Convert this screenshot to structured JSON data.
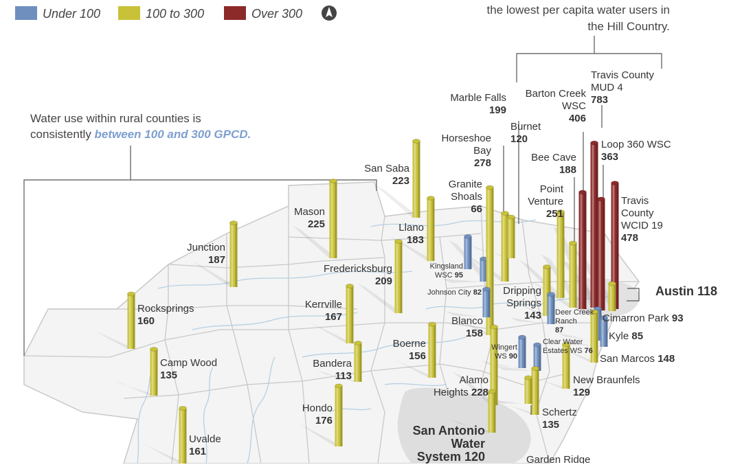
{
  "colors": {
    "under_100": "#6f8fbf",
    "mid_100_300": "#c9c239",
    "over_300": "#8c2a2a",
    "highlight_text": "#7e9fcf",
    "counties": "#c8c8c8",
    "rivers": "#b6cfe2",
    "urban": "#d9d9d9",
    "bracket": "#555555"
  },
  "legend": {
    "items": [
      {
        "label": "Under 100",
        "color": "#6f8fbf"
      },
      {
        "label": "100 to 300",
        "color": "#c9c239"
      },
      {
        "label": "Over 300",
        "color": "#8c2a2a"
      }
    ],
    "north_icon": "north-arrow-icon"
  },
  "annotations": {
    "rural_line1": "Water use within rural counties is",
    "rural_line2_prefix": "consistently ",
    "rural_line2_highlight": "between 100 and 300 GPCD.",
    "hill_line1": "the lowest per capita water users in",
    "hill_line2": "the Hill Country."
  },
  "chart_data": {
    "type": "bar",
    "title": "",
    "unit": "GPCD",
    "categories": [
      "Under 100",
      "100 to 300",
      "Over 300"
    ],
    "series": [
      {
        "name": "Junction",
        "value": 187,
        "category": "100 to 300"
      },
      {
        "name": "Rocksprings",
        "value": 160,
        "category": "100 to 300"
      },
      {
        "name": "Camp Wood",
        "value": 135,
        "category": "100 to 300"
      },
      {
        "name": "Uvalde",
        "value": 161,
        "category": "100 to 300"
      },
      {
        "name": "Hondo",
        "value": 176,
        "category": "100 to 300"
      },
      {
        "name": "Bandera",
        "value": 113,
        "category": "100 to 300"
      },
      {
        "name": "Kerrville",
        "value": 167,
        "category": "100 to 300"
      },
      {
        "name": "Fredericksburg",
        "value": 209,
        "category": "100 to 300"
      },
      {
        "name": "Mason",
        "value": 225,
        "category": "100 to 300"
      },
      {
        "name": "San Saba",
        "value": 223,
        "category": "100 to 300"
      },
      {
        "name": "Llano",
        "value": 183,
        "category": "100 to 300"
      },
      {
        "name": "Boerne",
        "value": 156,
        "category": "100 to 300"
      },
      {
        "name": "Blanco",
        "value": 158,
        "category": "100 to 300"
      },
      {
        "name": "Johnson City",
        "value": 82,
        "category": "Under 100"
      },
      {
        "name": "Kingsland WSC",
        "value": 95,
        "category": "Under 100"
      },
      {
        "name": "Granite Shoals",
        "value": 66,
        "category": "Under 100"
      },
      {
        "name": "Horseshoe Bay",
        "value": 278,
        "category": "100 to 300"
      },
      {
        "name": "Marble Falls",
        "value": 199,
        "category": "100 to 300"
      },
      {
        "name": "Burnet",
        "value": 120,
        "category": "100 to 300"
      },
      {
        "name": "Dripping Springs",
        "value": 143,
        "category": "100 to 300"
      },
      {
        "name": "Point Venture",
        "value": 251,
        "category": "100 to 300"
      },
      {
        "name": "Bee Cave",
        "value": 188,
        "category": "100 to 300"
      },
      {
        "name": "Barton Creek WSC",
        "value": 406,
        "category": "Over 300"
      },
      {
        "name": "Travis County MUD 4",
        "value": 783,
        "category": "Over 300"
      },
      {
        "name": "Loop 360 WSC",
        "value": 363,
        "category": "Over 300"
      },
      {
        "name": "Travis County WCID 19",
        "value": 478,
        "category": "Over 300"
      },
      {
        "name": "Austin",
        "value": 118,
        "category": "100 to 300"
      },
      {
        "name": "Deer Creek Ranch",
        "value": 87,
        "category": "Under 100"
      },
      {
        "name": "Cimarron Park",
        "value": 93,
        "category": "Under 100"
      },
      {
        "name": "Kyle",
        "value": 85,
        "category": "Under 100"
      },
      {
        "name": "San Marcos",
        "value": 148,
        "category": "100 to 300"
      },
      {
        "name": "Clear Water Estates WS",
        "value": 76,
        "category": "Under 100"
      },
      {
        "name": "Wingert WS",
        "value": 90,
        "category": "Under 100"
      },
      {
        "name": "New Braunfels",
        "value": 129,
        "category": "100 to 300"
      },
      {
        "name": "Alamo Heights",
        "value": 228,
        "category": "100 to 300"
      },
      {
        "name": "Schertz",
        "value": 135,
        "category": "100 to 300"
      },
      {
        "name": "San Antonio Water System",
        "value": 120,
        "category": "100 to 300"
      },
      {
        "name": "Garden Ridge",
        "value": null,
        "category": "100 to 300"
      }
    ]
  },
  "labels": [
    {
      "name_lines": [
        "Junction"
      ],
      "value": "187"
    },
    {
      "name_lines": [
        "Rocksprings"
      ],
      "value": "160"
    },
    {
      "name_lines": [
        "Camp Wood"
      ],
      "value": "135"
    },
    {
      "name_lines": [
        "Uvalde"
      ],
      "value": "161"
    },
    {
      "name_lines": [
        "Hondo"
      ],
      "value": "176"
    },
    {
      "name_lines": [
        "Bandera"
      ],
      "value": "113"
    },
    {
      "name_lines": [
        "Kerrville"
      ],
      "value": "167"
    },
    {
      "name_lines": [
        "Fredericksburg"
      ],
      "value": "209"
    },
    {
      "name_lines": [
        "Mason"
      ],
      "value": "225"
    },
    {
      "name_lines": [
        "San Saba"
      ],
      "value": "223"
    },
    {
      "name_lines": [
        "Llano"
      ],
      "value": "183"
    },
    {
      "name_lines": [
        "Boerne"
      ],
      "value": "156"
    },
    {
      "name_lines": [
        "Blanco"
      ],
      "value": "158"
    },
    {
      "name_lines": [
        "Johnson City"
      ],
      "value": "82"
    },
    {
      "name_lines": [
        "Kingsland",
        "WSC"
      ],
      "value": "95"
    },
    {
      "name_lines": [
        "Granite",
        "Shoals"
      ],
      "value": "66"
    },
    {
      "name_lines": [
        "Horseshoe",
        "Bay"
      ],
      "value": "278"
    },
    {
      "name_lines": [
        "Marble Falls"
      ],
      "value": "199"
    },
    {
      "name_lines": [
        "Burnet"
      ],
      "value": "120"
    },
    {
      "name_lines": [
        "Dripping",
        "Springs"
      ],
      "value": "143"
    },
    {
      "name_lines": [
        "Point",
        "Venture"
      ],
      "value": "251"
    },
    {
      "name_lines": [
        "Bee Cave"
      ],
      "value": "188"
    },
    {
      "name_lines": [
        "Barton Creek",
        "WSC"
      ],
      "value": "406"
    },
    {
      "name_lines": [
        "Travis County",
        "MUD 4"
      ],
      "value": "783"
    },
    {
      "name_lines": [
        "Loop 360 WSC"
      ],
      "value": "363"
    },
    {
      "name_lines": [
        "Travis",
        "County",
        "WCID 19"
      ],
      "value": "478"
    },
    {
      "name_lines": [
        "Austin"
      ],
      "value": "118"
    },
    {
      "name_lines": [
        "Deer Creek",
        "Ranch"
      ],
      "value": "87"
    },
    {
      "name_lines": [
        "Cimarron Park"
      ],
      "value": "93"
    },
    {
      "name_lines": [
        "Kyle"
      ],
      "value": "85"
    },
    {
      "name_lines": [
        "San Marcos"
      ],
      "value": "148"
    },
    {
      "name_lines": [
        "Clear Water",
        "Estates WS"
      ],
      "value": "76"
    },
    {
      "name_lines": [
        "Wingert",
        "WS"
      ],
      "value": "90"
    },
    {
      "name_lines": [
        "New Braunfels"
      ],
      "value": "129"
    },
    {
      "name_lines": [
        "Alamo",
        "Heights"
      ],
      "value": "228"
    },
    {
      "name_lines": [
        "Schertz"
      ],
      "value": "135"
    },
    {
      "name_lines": [
        "San Antonio",
        "Water",
        "System"
      ],
      "value": "120"
    },
    {
      "name_lines": [
        "Garden Ridge"
      ],
      "value": ""
    }
  ]
}
